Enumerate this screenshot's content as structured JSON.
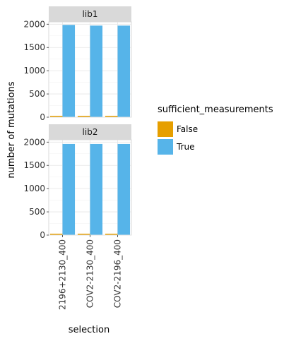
{
  "chart_data": {
    "type": "bar",
    "categories": [
      "2196+2130_400",
      "COV2-2130_400",
      "COV2-2196_400"
    ],
    "xlabel": "selection",
    "ylabel": "number of mutations",
    "ylim": [
      0,
      2050
    ],
    "yticks": [
      0,
      500,
      1000,
      1500,
      2000
    ],
    "grid": true,
    "legend": {
      "title": "sufficient_measurements",
      "placement": "right",
      "entries": [
        {
          "label": "False",
          "color": "#E69F00"
        },
        {
          "label": "True",
          "color": "#56B4E9"
        }
      ]
    },
    "facets": [
      {
        "label": "lib1",
        "series": [
          {
            "name": "False",
            "values": [
              30,
              30,
              30
            ]
          },
          {
            "name": "True",
            "values": [
              1985,
              1970,
              1970
            ]
          }
        ]
      },
      {
        "label": "lib2",
        "series": [
          {
            "name": "False",
            "values": [
              30,
              30,
              30
            ]
          },
          {
            "name": "True",
            "values": [
              1960,
              1960,
              1960
            ]
          }
        ]
      }
    ]
  }
}
